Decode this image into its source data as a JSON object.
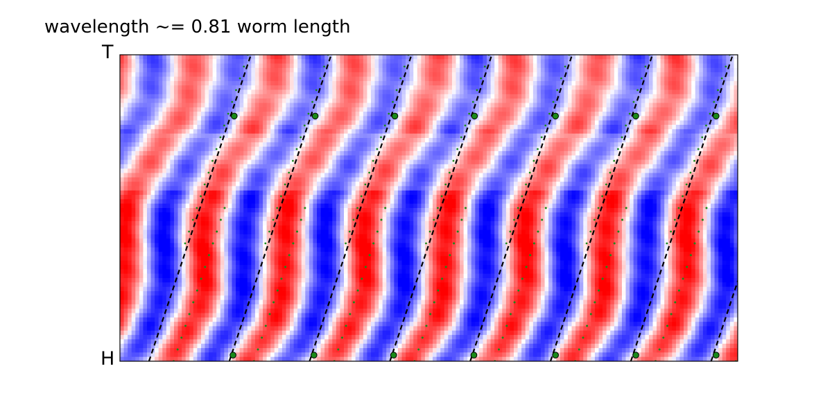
{
  "chart_data": {
    "type": "heatmap",
    "title": "wavelength ~= 0.81 worm length",
    "y_axis": {
      "top_label": "T",
      "bottom_label": "H"
    },
    "colormap": {
      "positive": "#ff0000",
      "zero": "#ffffff",
      "negative": "#0000ff"
    },
    "ticks": "none",
    "grid": false,
    "wave": {
      "period_x_frac": 0.13,
      "description_of_pattern": ""
    },
    "fit_lines": {
      "color": "#000000",
      "style": "dashed",
      "lines": [
        {
          "x_bottom": 0.047,
          "x_top": 0.212
        },
        {
          "x_bottom": 0.177,
          "x_top": 0.342
        },
        {
          "x_bottom": 0.307,
          "x_top": 0.472
        },
        {
          "x_bottom": 0.437,
          "x_top": 0.602
        },
        {
          "x_bottom": 0.567,
          "x_top": 0.732
        },
        {
          "x_bottom": 0.697,
          "x_top": 0.862
        },
        {
          "x_bottom": 0.827,
          "x_top": 0.992
        },
        {
          "x_bottom": 0.957,
          "x_top": 1.122
        }
      ]
    },
    "markers": {
      "color": "#1a8a1a",
      "points_upper_y": 0.8,
      "points_lower_y": 0.02,
      "x_upper": [
        0.185,
        0.316,
        0.445,
        0.574,
        0.705,
        0.835,
        0.965
      ],
      "x_lower": [
        0.183,
        0.314,
        0.443,
        0.573,
        0.705,
        0.835,
        0.965
      ]
    }
  }
}
